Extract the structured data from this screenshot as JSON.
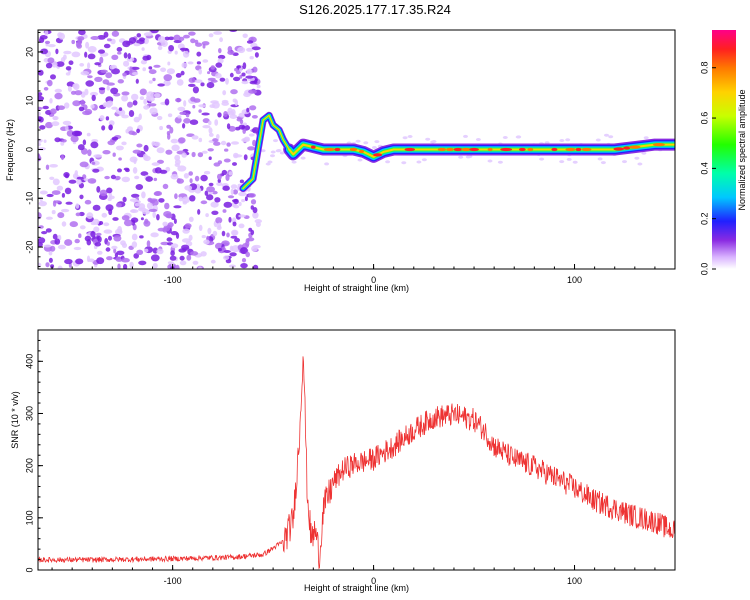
{
  "title": "S126.2025.177.17.35.R24",
  "chart_data": [
    {
      "type": "heatmap",
      "xlabel": "Height of straight line (km)",
      "ylabel": "Frequency (Hz)",
      "xlim": [
        -167,
        150
      ],
      "ylim": [
        -24.5,
        24.5
      ],
      "x_ticks": [
        -100,
        0,
        100
      ],
      "y_ticks": [
        -20,
        -10,
        0,
        10,
        20
      ],
      "ridge": {
        "description_free_values": true,
        "x": [
          -65,
          -60,
          -55,
          -52,
          -50,
          -47,
          -45,
          -42,
          -40,
          -35,
          -30,
          -25,
          -20,
          -15,
          -10,
          -5,
          0,
          5,
          10,
          20,
          40,
          60,
          80,
          100,
          120,
          140,
          150
        ],
        "y": [
          -8,
          -6,
          6,
          7,
          5,
          4,
          2,
          0,
          -1,
          1,
          0.5,
          0,
          0,
          0,
          0,
          -0.5,
          -1.5,
          -0.5,
          0,
          0,
          0,
          0,
          0,
          0,
          0,
          1,
          1
        ]
      },
      "colorbar": {
        "label": "Normalized spectral amplitude",
        "range": [
          0,
          0.95
        ],
        "ticks": [
          0.0,
          0.2,
          0.4,
          0.6,
          0.8
        ]
      }
    },
    {
      "type": "line",
      "xlabel": "Height of straight line (km)",
      "ylabel": "SNR (10 * v/v)",
      "xlim": [
        -167,
        150
      ],
      "ylim": [
        0,
        460
      ],
      "x_ticks": [
        -100,
        0,
        100
      ],
      "y_ticks": [
        0,
        100,
        200,
        300,
        400
      ],
      "line_color": "#ee3333",
      "envelope": {
        "x": [
          -167,
          -140,
          -100,
          -70,
          -55,
          -45,
          -40,
          -37,
          -35,
          -33,
          -31,
          -29,
          -27,
          -25,
          -20,
          -15,
          -10,
          0,
          10,
          20,
          30,
          40,
          50,
          55,
          60,
          70,
          80,
          90,
          100,
          110,
          120,
          130,
          140,
          150
        ],
        "y": [
          20,
          20,
          22,
          25,
          30,
          55,
          100,
          250,
          430,
          150,
          60,
          80,
          30,
          120,
          170,
          195,
          205,
          215,
          240,
          270,
          295,
          300,
          290,
          270,
          240,
          215,
          200,
          180,
          160,
          135,
          120,
          105,
          95,
          75
        ]
      }
    }
  ]
}
